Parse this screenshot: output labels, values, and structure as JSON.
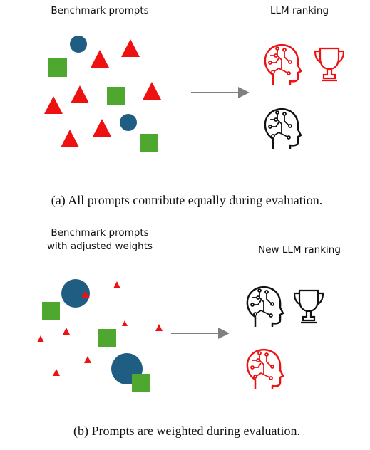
{
  "panels": [
    {
      "prompts_title": [
        "Benchmark prompts"
      ],
      "ranking_title": "LLM ranking",
      "caption": "(a)  All prompts contribute equally during evaluation."
    },
    {
      "prompts_title": [
        "Benchmark prompts",
        "with adjusted weights"
      ],
      "ranking_title": "New LLM ranking",
      "caption": "(b)  Prompts are weighted during evaluation."
    }
  ]
}
